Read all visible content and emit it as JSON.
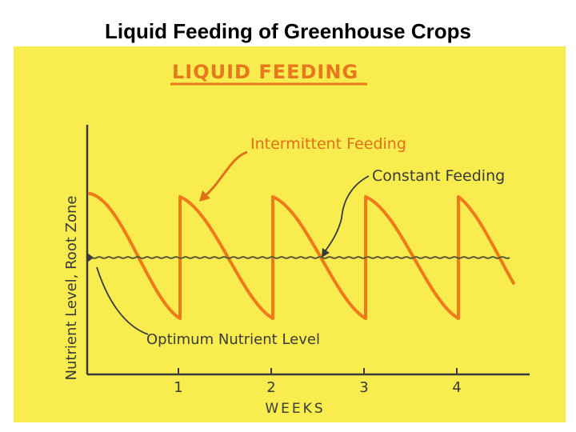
{
  "slide": {
    "title": "Liquid Feeding of Greenhouse Crops"
  },
  "diagram": {
    "heading": "LIQUID FEEDING",
    "y_axis_label": "Nutrient Level, Root Zone",
    "x_axis_label": "WEEKS",
    "x_ticks": [
      "1",
      "2",
      "3",
      "4"
    ],
    "annotations": {
      "intermittent": "Intermittent Feeding",
      "constant": "Constant Feeding",
      "optimum": "Optimum Nutrient Level"
    },
    "colors": {
      "panel_background": "#f8ec4e",
      "curve": "#f07a1a",
      "ink": "#3a3a3a",
      "heading": "#e8781c"
    }
  }
}
